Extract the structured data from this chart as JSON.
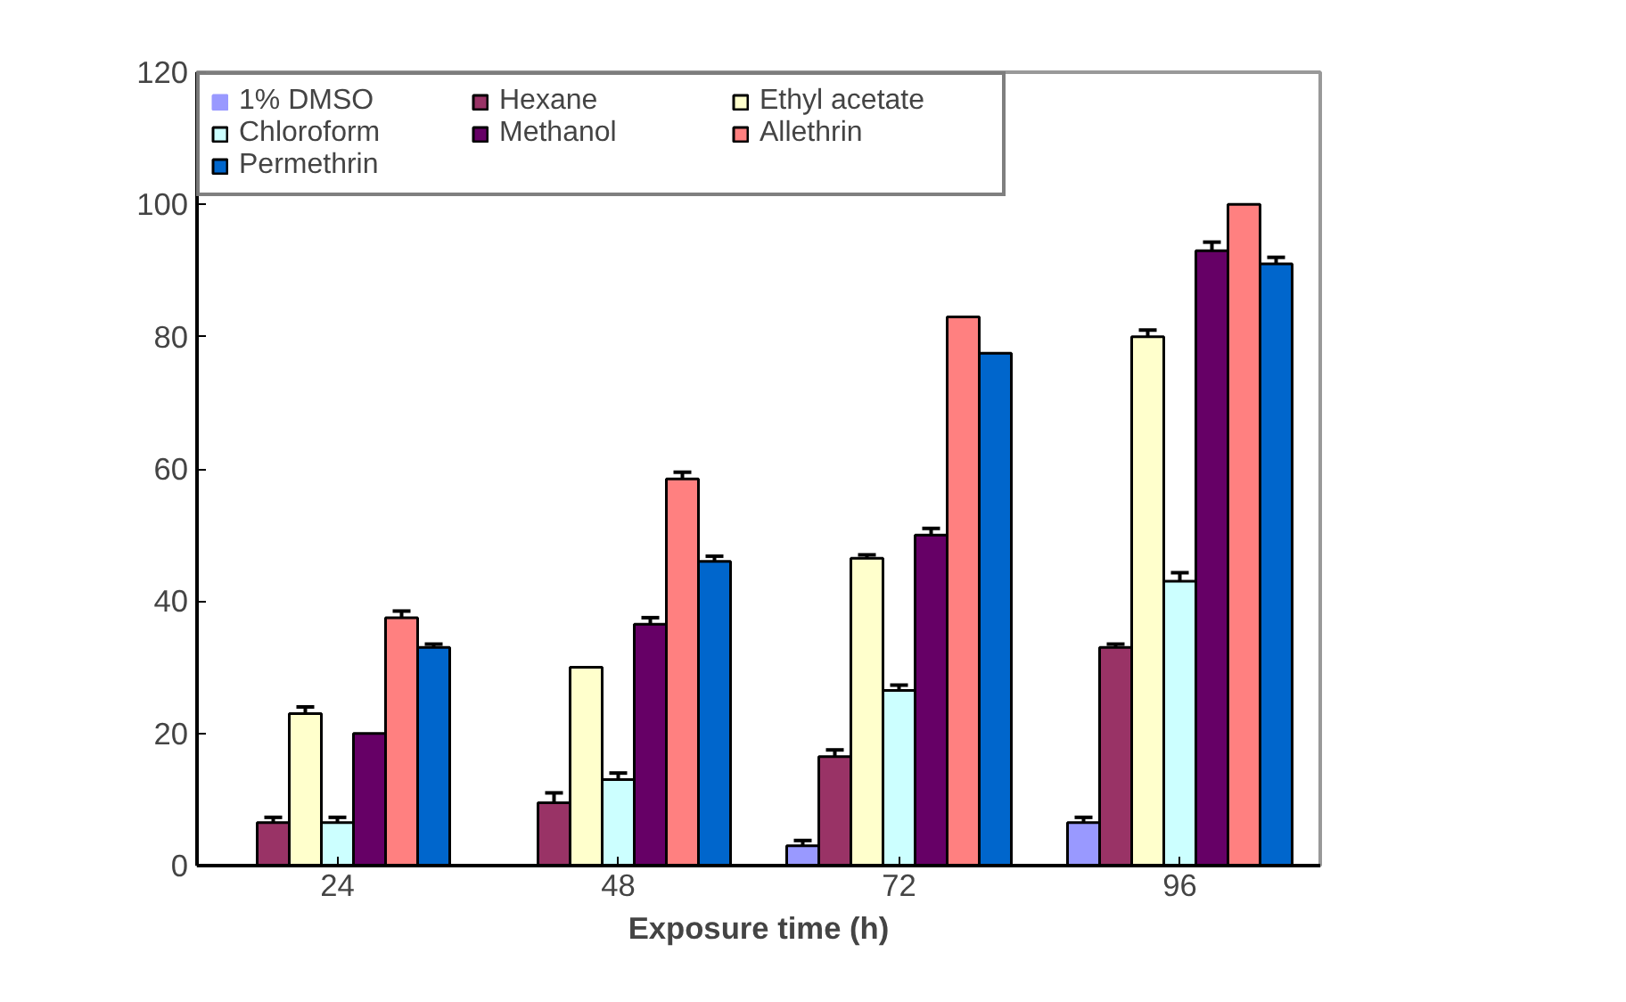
{
  "chart_data": {
    "type": "bar",
    "xlabel": "Exposure time (h)",
    "categories": [
      "24",
      "48",
      "72",
      "96"
    ],
    "series": [
      {
        "name": "1% DMSO",
        "color": "#9999ff",
        "values": [
          0,
          0,
          3,
          6.5
        ],
        "errors": [
          null,
          null,
          0.8,
          0.8
        ]
      },
      {
        "name": "Hexane",
        "color": "#993366",
        "values": [
          6.5,
          9.5,
          16.5,
          33
        ],
        "errors": [
          0.8,
          1.5,
          1,
          0.5
        ]
      },
      {
        "name": "Ethyl acetate",
        "color": "#ffffcc",
        "values": [
          23,
          30,
          46.5,
          80
        ],
        "errors": [
          1,
          null,
          0.5,
          1
        ]
      },
      {
        "name": "Chloroform",
        "color": "#ccffff",
        "values": [
          6.5,
          13,
          26.5,
          43
        ],
        "errors": [
          0.8,
          1,
          0.8,
          1.3
        ]
      },
      {
        "name": "Methanol",
        "color": "#660066",
        "values": [
          20,
          36.5,
          50,
          93
        ],
        "errors": [
          null,
          1,
          1,
          1.3
        ]
      },
      {
        "name": "Allethrin",
        "color": "#ff8080",
        "values": [
          37.5,
          58.5,
          83,
          100
        ],
        "errors": [
          1,
          1,
          null,
          null
        ]
      },
      {
        "name": "Permethrin",
        "color": "#0066cc",
        "values": [
          33,
          46,
          77.5,
          91
        ],
        "errors": [
          0.5,
          0.8,
          null,
          1
        ]
      }
    ],
    "ylim": [
      0,
      120
    ],
    "yticks": [
      0,
      20,
      40,
      60,
      80,
      100,
      120
    ],
    "grid": false,
    "legend": "top left"
  }
}
